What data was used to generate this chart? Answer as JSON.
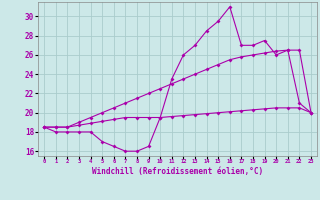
{
  "xlabel": "Windchill (Refroidissement éolien,°C)",
  "bg_color": "#cce8e8",
  "line_color": "#aa00aa",
  "grid_color": "#aacccc",
  "x_hours": [
    0,
    1,
    2,
    3,
    4,
    5,
    6,
    7,
    8,
    9,
    10,
    11,
    12,
    13,
    14,
    15,
    16,
    17,
    18,
    19,
    20,
    21,
    22,
    23
  ],
  "line1_y": [
    18.5,
    18.0,
    18.0,
    18.0,
    18.0,
    17.0,
    16.5,
    16.0,
    16.0,
    16.5,
    19.5,
    23.5,
    26.0,
    27.0,
    28.5,
    29.5,
    31.0,
    27.0,
    27.0,
    27.5,
    26.0,
    26.5,
    21.0,
    20.0
  ],
  "line2_y": [
    18.5,
    18.5,
    18.5,
    19.0,
    19.5,
    20.0,
    20.5,
    21.0,
    21.5,
    22.0,
    22.5,
    23.0,
    23.5,
    24.0,
    24.5,
    25.0,
    25.5,
    25.8,
    26.0,
    26.2,
    26.4,
    26.5,
    26.5,
    20.0
  ],
  "line3_y": [
    18.5,
    18.5,
    18.5,
    18.7,
    18.9,
    19.1,
    19.3,
    19.5,
    19.5,
    19.5,
    19.5,
    19.6,
    19.7,
    19.8,
    19.9,
    20.0,
    20.1,
    20.2,
    20.3,
    20.4,
    20.5,
    20.5,
    20.5,
    20.0
  ],
  "ylim": [
    15.5,
    31.5
  ],
  "yticks": [
    16,
    18,
    20,
    22,
    24,
    26,
    28,
    30
  ],
  "xtick_labels": [
    "0",
    "1",
    "2",
    "3",
    "4",
    "5",
    "6",
    "7",
    "8",
    "9",
    "10",
    "11",
    "12",
    "13",
    "14",
    "15",
    "16",
    "17",
    "18",
    "19",
    "20",
    "21",
    "22",
    "23"
  ]
}
